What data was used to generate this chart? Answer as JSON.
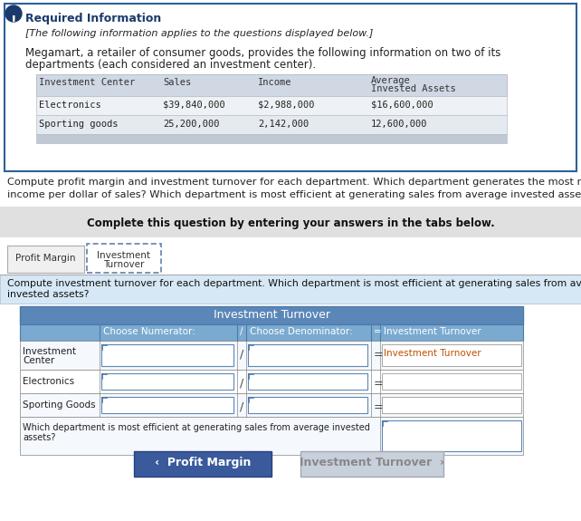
{
  "warning_icon_color": "#1a3a6b",
  "box_border_color": "#2d6099",
  "required_info_title": "Required Information",
  "required_info_italic": "[The following information applies to the questions displayed below.]",
  "required_info_body1": "Megamart, a retailer of consumer goods, provides the following information on two of its",
  "required_info_body2": "departments (each considered an investment center).",
  "table_bg_header": "#d0d8e0",
  "table_bg_row1": "#eef2f6",
  "table_bg_row2": "#e4eaf0",
  "table_bg_footer": "#c8d0d8",
  "question_line1": "Compute profit margin and investment turnover for each department. Which department generates the most net",
  "question_line2": "income per dollar of sales? Which department is most efficient at generating sales from average invested assets?",
  "complete_banner_text": "Complete this question by entering your answers in the tabs below.",
  "complete_banner_bg": "#e0e0e0",
  "tab1_label": "Profit Margin",
  "tab2_line1": "Investment",
  "tab2_line2": "Turnover",
  "sub_q_line1": "Compute investment turnover for each department. Which department is most efficient at generating sales from average",
  "sub_q_line2": "invested assets?",
  "sub_question_bg": "#d6e8f5",
  "inv_table_header_bg": "#5b87b8",
  "inv_table_subheader_bg": "#7aaad0",
  "inv_table_header_text": "Investment Turnover",
  "inv_input_border": "#5b87b8",
  "btn_left_bg": "#3a5a9c",
  "btn_left_text": "‹  Profit Margin",
  "btn_right_bg": "#c8d0dc",
  "btn_right_text": "Investment Turnover  ›",
  "text_color_dark": "#222222",
  "text_color_blue": "#1a3a6b",
  "text_color_orange": "#c05000",
  "font_mono": "DejaVu Sans Mono",
  "bg_color": "#ffffff"
}
